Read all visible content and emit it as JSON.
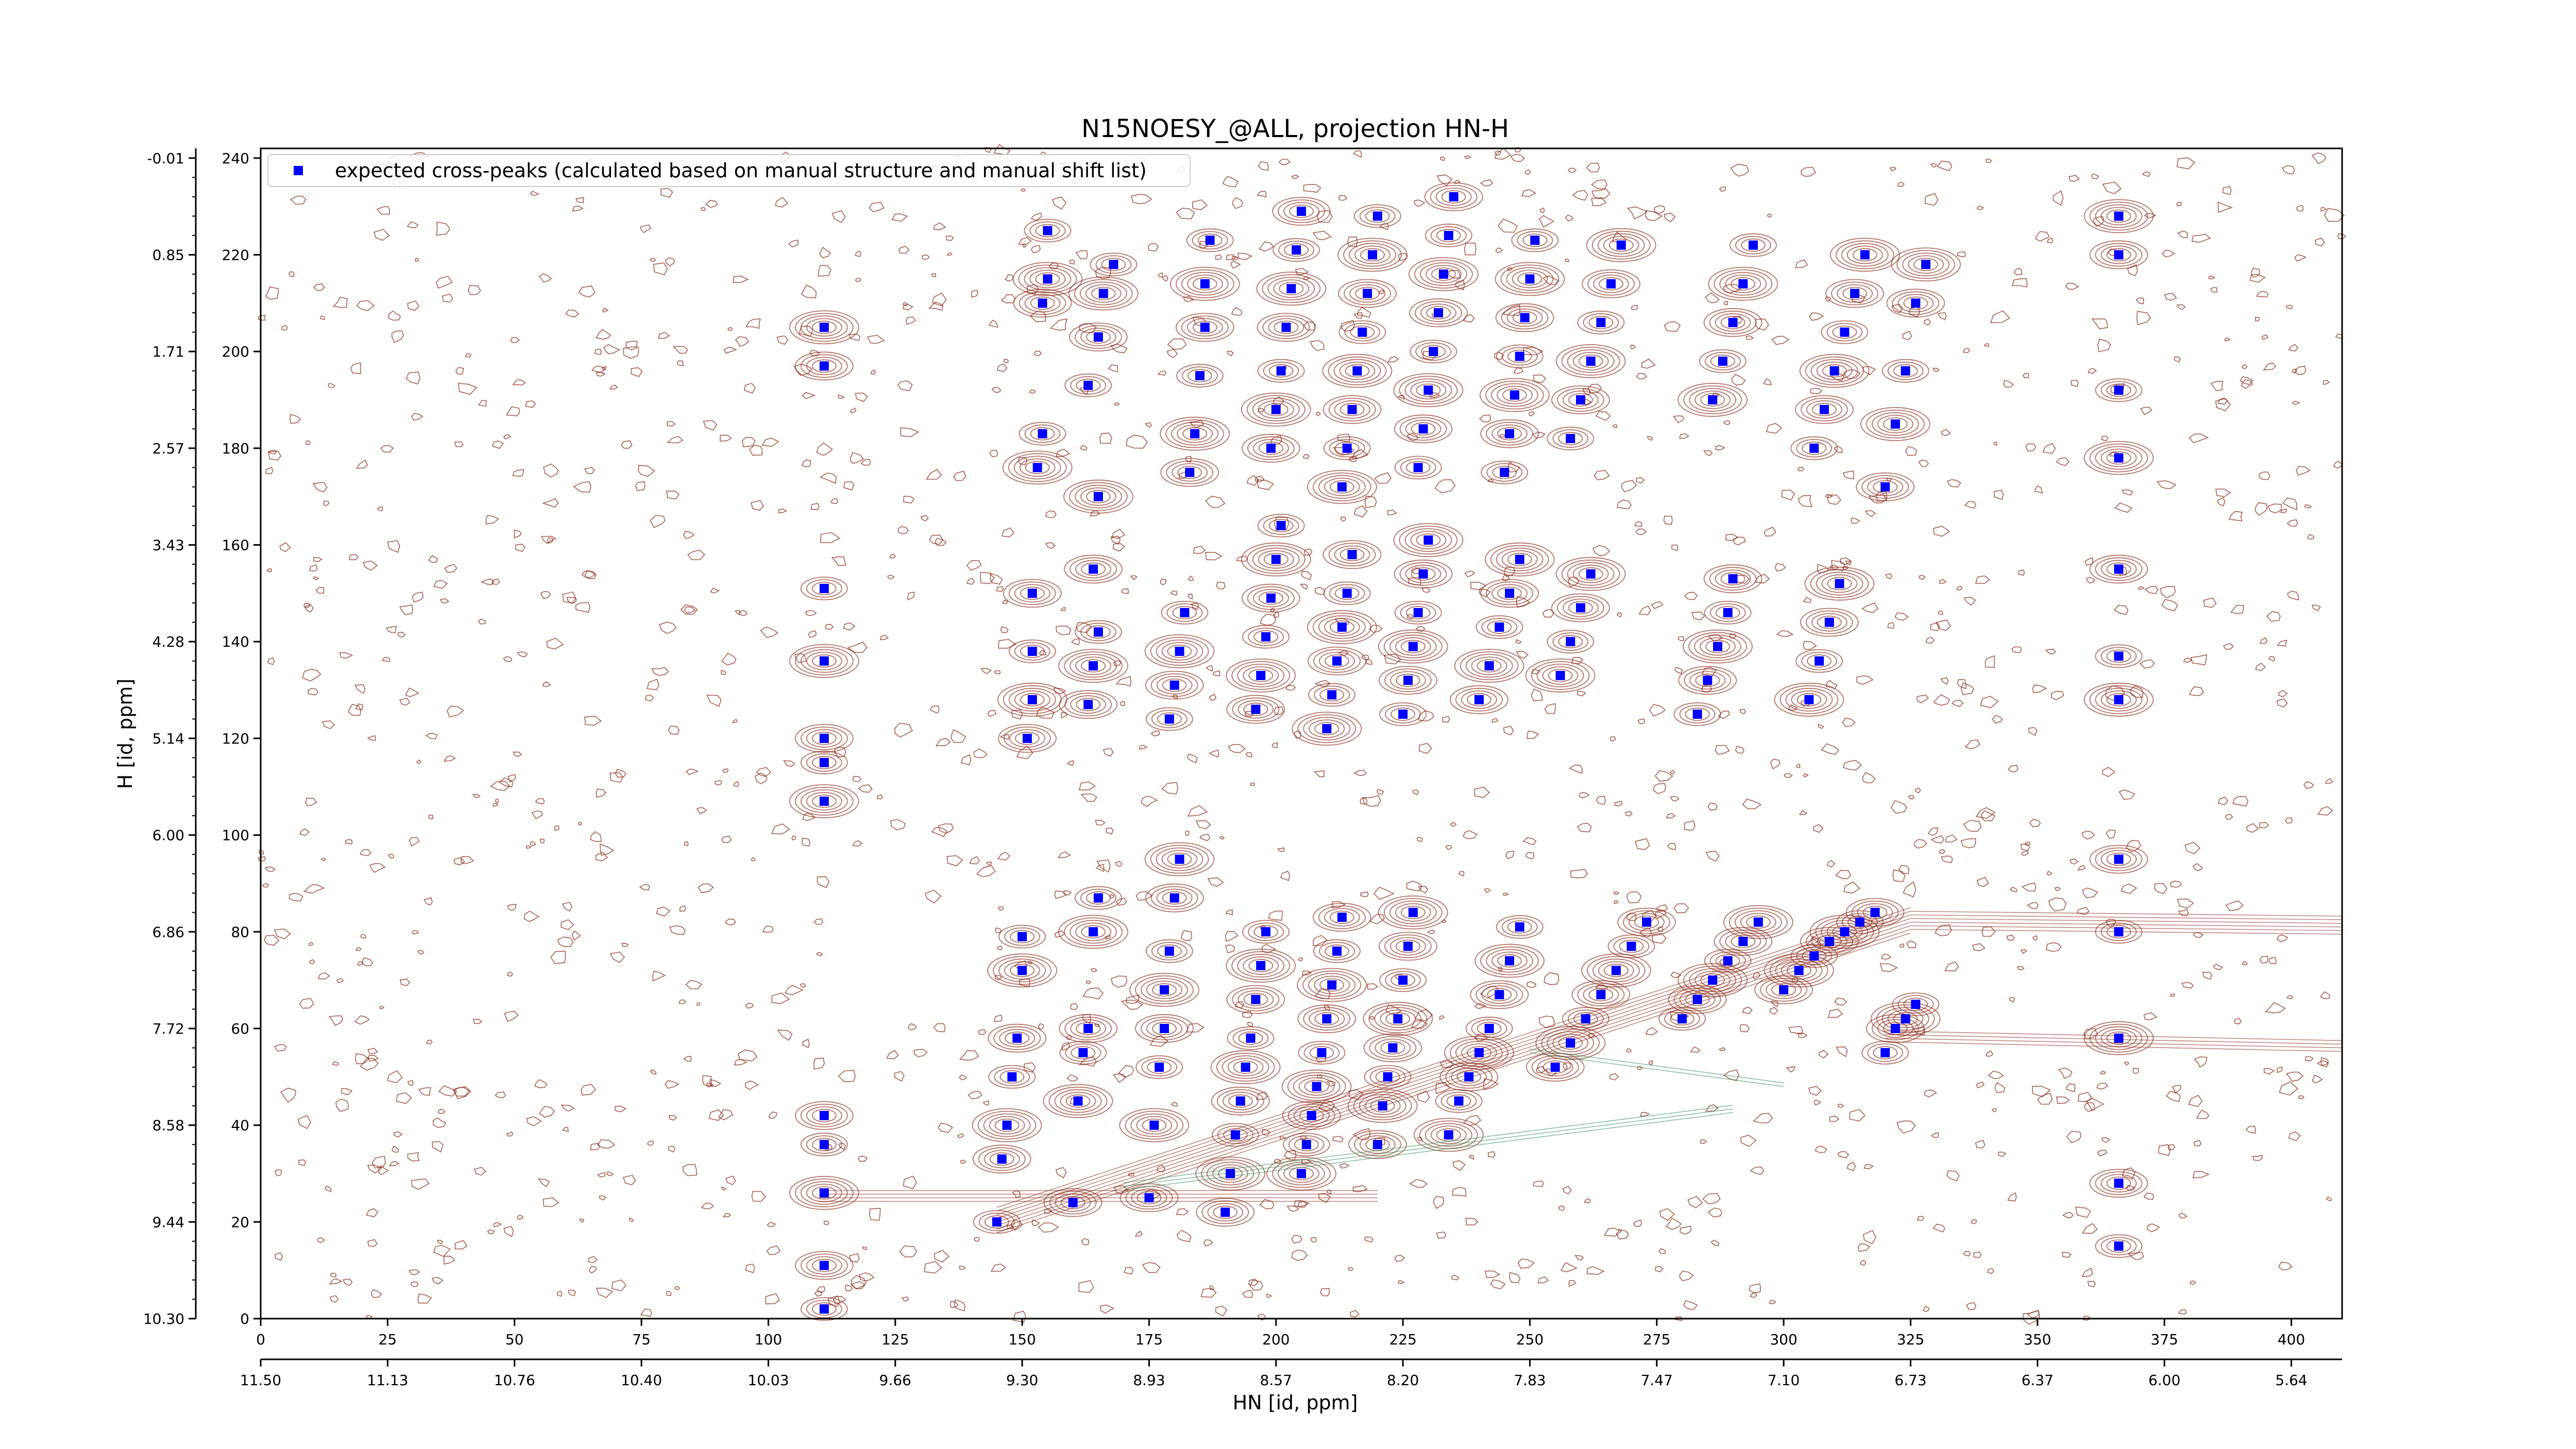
{
  "chart_data": {
    "type": "scatter",
    "title": "N15NOESY_@ALL, projection HN-H",
    "xlabel": "HN [id, ppm]",
    "ylabel": "H [id, ppm]",
    "xlim": [
      0,
      410
    ],
    "ylim": [
      0,
      242
    ],
    "x_ticks": [
      0,
      25,
      50,
      75,
      100,
      125,
      150,
      175,
      200,
      225,
      250,
      275,
      300,
      325,
      350,
      375,
      400
    ],
    "y_ticks": [
      0,
      20,
      40,
      60,
      80,
      100,
      120,
      140,
      160,
      180,
      200,
      220,
      240
    ],
    "x2_ticks": [
      {
        "pos": 0,
        "label": "11.50"
      },
      {
        "pos": 25,
        "label": "11.13"
      },
      {
        "pos": 50,
        "label": "10.76"
      },
      {
        "pos": 75,
        "label": "10.40"
      },
      {
        "pos": 100,
        "label": "10.03"
      },
      {
        "pos": 125,
        "label": "9.66"
      },
      {
        "pos": 150,
        "label": "9.30"
      },
      {
        "pos": 175,
        "label": "8.93"
      },
      {
        "pos": 200,
        "label": "8.57"
      },
      {
        "pos": 225,
        "label": "8.20"
      },
      {
        "pos": 250,
        "label": "7.83"
      },
      {
        "pos": 275,
        "label": "7.47"
      },
      {
        "pos": 300,
        "label": "7.10"
      },
      {
        "pos": 325,
        "label": "6.73"
      },
      {
        "pos": 350,
        "label": "6.37"
      },
      {
        "pos": 375,
        "label": "6.00"
      },
      {
        "pos": 400,
        "label": "5.64"
      }
    ],
    "y2_ticks": [
      {
        "pos": 0,
        "label": "10.30"
      },
      {
        "pos": 20,
        "label": "9.44"
      },
      {
        "pos": 40,
        "label": "8.58"
      },
      {
        "pos": 60,
        "label": "7.72"
      },
      {
        "pos": 80,
        "label": "6.86"
      },
      {
        "pos": 100,
        "label": "6.00"
      },
      {
        "pos": 120,
        "label": "5.14"
      },
      {
        "pos": 140,
        "label": "4.28"
      },
      {
        "pos": 160,
        "label": "3.43"
      },
      {
        "pos": 180,
        "label": "2.57"
      },
      {
        "pos": 200,
        "label": "1.71"
      },
      {
        "pos": 220,
        "label": "0.85"
      },
      {
        "pos": 240,
        "label": "-0.01"
      }
    ],
    "legend": {
      "placement": "top-left",
      "entries": [
        "expected cross-peaks (calculated based on manual structure and manual shift list)"
      ]
    },
    "colors": {
      "markers": "#0000ff",
      "contours": "#8b2a1a",
      "contours_negative": "#2e8b57"
    },
    "series": [
      {
        "name": "expected cross-peaks (calculated based on manual structure and manual shift list)",
        "marker": "square",
        "points": [
          [
            111,
            2
          ],
          [
            111,
            11
          ],
          [
            111,
            26
          ],
          [
            111,
            36
          ],
          [
            111,
            42
          ],
          [
            111,
            107
          ],
          [
            111,
            115
          ],
          [
            111,
            120
          ],
          [
            111,
            136
          ],
          [
            111,
            151
          ],
          [
            111,
            197
          ],
          [
            111,
            205
          ],
          [
            145,
            20
          ],
          [
            146,
            33
          ],
          [
            147,
            40
          ],
          [
            148,
            50
          ],
          [
            149,
            58
          ],
          [
            150,
            72
          ],
          [
            150,
            79
          ],
          [
            151,
            120
          ],
          [
            152,
            128
          ],
          [
            152,
            138
          ],
          [
            152,
            150
          ],
          [
            153,
            176
          ],
          [
            154,
            183
          ],
          [
            154,
            210
          ],
          [
            155,
            215
          ],
          [
            155,
            225
          ],
          [
            160,
            24
          ],
          [
            161,
            45
          ],
          [
            162,
            55
          ],
          [
            163,
            60
          ],
          [
            164,
            80
          ],
          [
            165,
            87
          ],
          [
            163,
            127
          ],
          [
            164,
            135
          ],
          [
            165,
            142
          ],
          [
            164,
            155
          ],
          [
            165,
            170
          ],
          [
            163,
            193
          ],
          [
            165,
            203
          ],
          [
            166,
            212
          ],
          [
            168,
            218
          ],
          [
            175,
            25
          ],
          [
            176,
            40
          ],
          [
            177,
            52
          ],
          [
            178,
            60
          ],
          [
            178,
            68
          ],
          [
            179,
            76
          ],
          [
            180,
            87
          ],
          [
            181,
            95
          ],
          [
            179,
            124
          ],
          [
            180,
            131
          ],
          [
            181,
            138
          ],
          [
            182,
            146
          ],
          [
            183,
            175
          ],
          [
            184,
            183
          ],
          [
            185,
            195
          ],
          [
            186,
            205
          ],
          [
            186,
            214
          ],
          [
            187,
            223
          ],
          [
            190,
            22
          ],
          [
            191,
            30
          ],
          [
            192,
            38
          ],
          [
            193,
            45
          ],
          [
            194,
            52
          ],
          [
            195,
            58
          ],
          [
            196,
            66
          ],
          [
            197,
            73
          ],
          [
            198,
            80
          ],
          [
            196,
            126
          ],
          [
            197,
            133
          ],
          [
            198,
            141
          ],
          [
            199,
            149
          ],
          [
            200,
            157
          ],
          [
            201,
            164
          ],
          [
            199,
            180
          ],
          [
            200,
            188
          ],
          [
            201,
            196
          ],
          [
            202,
            205
          ],
          [
            203,
            213
          ],
          [
            204,
            221
          ],
          [
            205,
            229
          ],
          [
            205,
            30
          ],
          [
            206,
            36
          ],
          [
            207,
            42
          ],
          [
            208,
            48
          ],
          [
            209,
            55
          ],
          [
            210,
            62
          ],
          [
            211,
            69
          ],
          [
            212,
            76
          ],
          [
            213,
            83
          ],
          [
            210,
            122
          ],
          [
            211,
            129
          ],
          [
            212,
            136
          ],
          [
            213,
            143
          ],
          [
            214,
            150
          ],
          [
            215,
            158
          ],
          [
            213,
            172
          ],
          [
            214,
            180
          ],
          [
            215,
            188
          ],
          [
            216,
            196
          ],
          [
            217,
            204
          ],
          [
            218,
            212
          ],
          [
            219,
            220
          ],
          [
            220,
            228
          ],
          [
            220,
            36
          ],
          [
            221,
            44
          ],
          [
            222,
            50
          ],
          [
            223,
            56
          ],
          [
            224,
            62
          ],
          [
            225,
            70
          ],
          [
            226,
            77
          ],
          [
            227,
            84
          ],
          [
            225,
            125
          ],
          [
            226,
            132
          ],
          [
            227,
            139
          ],
          [
            228,
            146
          ],
          [
            229,
            154
          ],
          [
            230,
            161
          ],
          [
            228,
            176
          ],
          [
            229,
            184
          ],
          [
            230,
            192
          ],
          [
            231,
            200
          ],
          [
            232,
            208
          ],
          [
            233,
            216
          ],
          [
            234,
            224
          ],
          [
            235,
            232
          ],
          [
            234,
            38
          ],
          [
            236,
            45
          ],
          [
            238,
            50
          ],
          [
            240,
            55
          ],
          [
            242,
            60
          ],
          [
            244,
            67
          ],
          [
            246,
            74
          ],
          [
            248,
            81
          ],
          [
            240,
            128
          ],
          [
            242,
            135
          ],
          [
            244,
            143
          ],
          [
            246,
            150
          ],
          [
            248,
            157
          ],
          [
            245,
            175
          ],
          [
            246,
            183
          ],
          [
            247,
            191
          ],
          [
            248,
            199
          ],
          [
            249,
            207
          ],
          [
            250,
            215
          ],
          [
            251,
            223
          ],
          [
            255,
            52
          ],
          [
            258,
            57
          ],
          [
            261,
            62
          ],
          [
            264,
            67
          ],
          [
            267,
            72
          ],
          [
            270,
            77
          ],
          [
            273,
            82
          ],
          [
            256,
            133
          ],
          [
            258,
            140
          ],
          [
            260,
            147
          ],
          [
            262,
            154
          ],
          [
            258,
            182
          ],
          [
            260,
            190
          ],
          [
            262,
            198
          ],
          [
            264,
            206
          ],
          [
            266,
            214
          ],
          [
            268,
            222
          ],
          [
            280,
            62
          ],
          [
            283,
            66
          ],
          [
            286,
            70
          ],
          [
            289,
            74
          ],
          [
            292,
            78
          ],
          [
            295,
            82
          ],
          [
            283,
            125
          ],
          [
            285,
            132
          ],
          [
            287,
            139
          ],
          [
            289,
            146
          ],
          [
            290,
            153
          ],
          [
            286,
            190
          ],
          [
            288,
            198
          ],
          [
            290,
            206
          ],
          [
            292,
            214
          ],
          [
            294,
            222
          ],
          [
            300,
            68
          ],
          [
            303,
            72
          ],
          [
            306,
            75
          ],
          [
            309,
            78
          ],
          [
            312,
            80
          ],
          [
            315,
            82
          ],
          [
            318,
            84
          ],
          [
            305,
            128
          ],
          [
            307,
            136
          ],
          [
            309,
            144
          ],
          [
            311,
            152
          ],
          [
            306,
            180
          ],
          [
            308,
            188
          ],
          [
            310,
            196
          ],
          [
            312,
            204
          ],
          [
            314,
            212
          ],
          [
            316,
            220
          ],
          [
            320,
            55
          ],
          [
            322,
            60
          ],
          [
            324,
            62
          ],
          [
            326,
            65
          ],
          [
            320,
            172
          ],
          [
            322,
            185
          ],
          [
            324,
            196
          ],
          [
            326,
            210
          ],
          [
            328,
            218
          ],
          [
            366,
            15
          ],
          [
            366,
            28
          ],
          [
            366,
            58
          ],
          [
            366,
            80
          ],
          [
            366,
            95
          ],
          [
            366,
            128
          ],
          [
            366,
            137
          ],
          [
            366,
            155
          ],
          [
            366,
            178
          ],
          [
            366,
            192
          ],
          [
            366,
            220
          ],
          [
            366,
            228
          ]
        ]
      }
    ]
  }
}
